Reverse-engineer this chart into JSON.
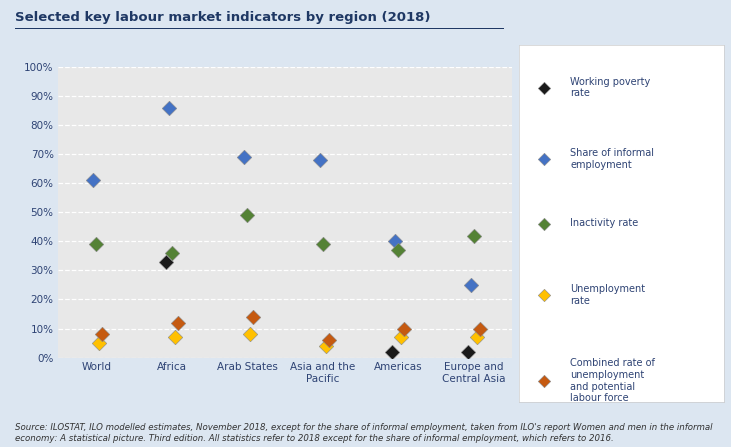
{
  "title": "Selected key labour market indicators by region (2018)",
  "regions": [
    "World",
    "Africa",
    "Arab States",
    "Asia and the\nPacific",
    "Americas",
    "Europe and\nCentral Asia"
  ],
  "indicators": {
    "working_poverty": {
      "label": "Working poverty\nrate",
      "color": "#1a1a1a",
      "values": [
        null,
        33,
        null,
        null,
        2,
        2
      ]
    },
    "informal_employment": {
      "label": "Share of informal\nemployment",
      "color": "#4472C4",
      "values": [
        61,
        86,
        69,
        68,
        40,
        25
      ]
    },
    "inactivity": {
      "label": "Inactivity rate",
      "color": "#548235",
      "values": [
        39,
        36,
        49,
        39,
        37,
        42
      ]
    },
    "unemployment": {
      "label": "Unemployment\nrate",
      "color": "#FFC000",
      "values": [
        5,
        7,
        8,
        4,
        7,
        7
      ]
    },
    "combined_rate": {
      "label": "Combined rate of\nunemployment\nand potential\nlabour force",
      "color": "#C55A11",
      "values": [
        8,
        12,
        14,
        6,
        10,
        10
      ]
    }
  },
  "source_text": "Source: ILOSTAT, ILO modelled estimates, November 2018, except for the share of informal employment, taken from ILO's report Women and men in the informal\neconomy: A statistical picture. Third edition. All statistics refer to 2018 except for the share of informal employment, which refers to 2016.",
  "background_color": "#dce6f1",
  "plot_bg_color": "#e8e8e8",
  "legend_bg_color": "#ffffff",
  "ylim": [
    0,
    100
  ],
  "ytick_labels": [
    "0%",
    "10%",
    "20%",
    "30%",
    "40%",
    "50%",
    "60%",
    "70%",
    "80%",
    "90%",
    "100%"
  ],
  "grid_color": "#ffffff",
  "text_color": "#2E4374",
  "title_color": "#1f3864"
}
